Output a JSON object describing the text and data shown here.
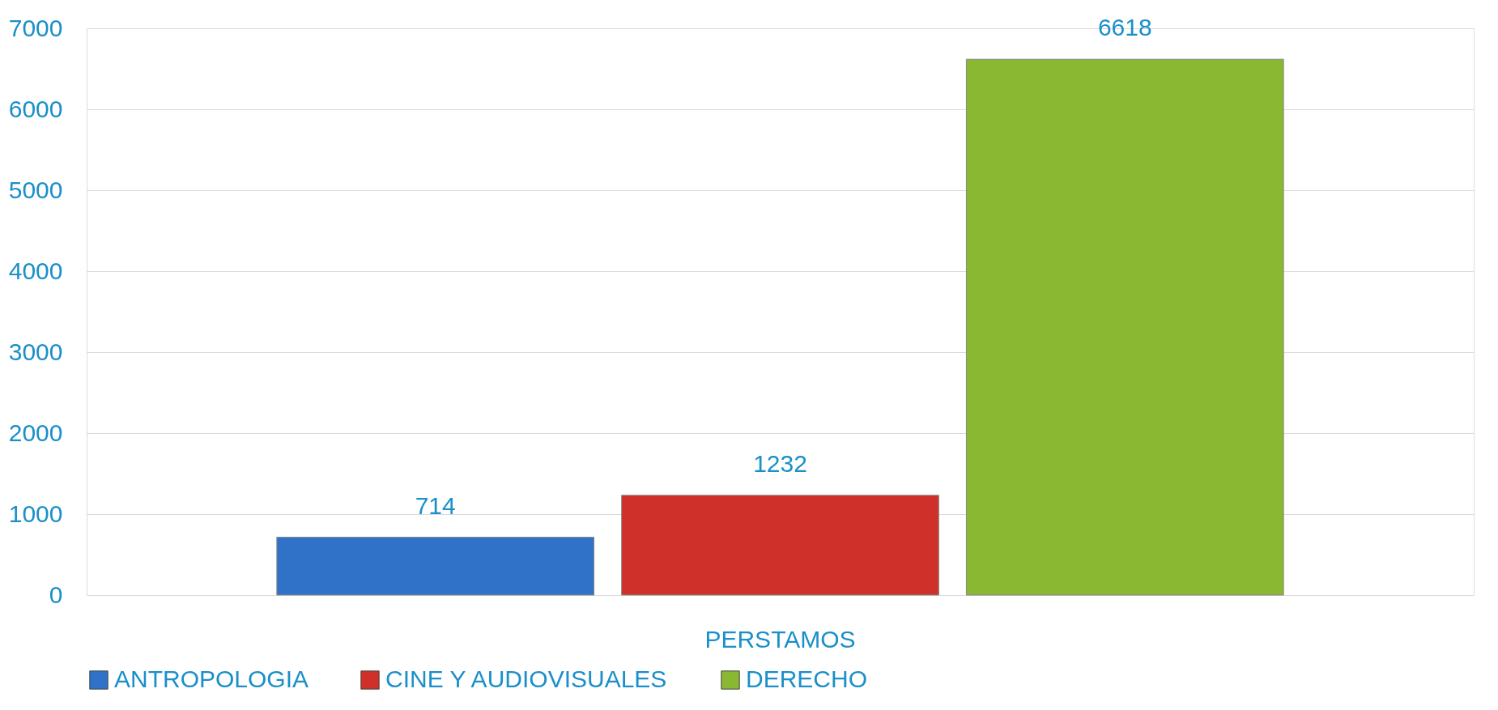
{
  "chart_data": {
    "type": "bar",
    "categories": [
      "PERSTAMOS"
    ],
    "series": [
      {
        "name": "ANTROPOLOGIA",
        "color": "#2f72c8",
        "values": [
          714
        ]
      },
      {
        "name": "CINE Y AUDIOVISUALES",
        "color": "#d0302a",
        "values": [
          1232
        ]
      },
      {
        "name": "DERECHO",
        "color": "#8ab832",
        "values": [
          6618
        ]
      }
    ],
    "ylim": [
      0,
      7000
    ],
    "yticks": [
      0,
      1000,
      2000,
      3000,
      4000,
      5000,
      6000,
      7000
    ],
    "grid": "y",
    "legend": "bottom",
    "data_labels": true
  }
}
